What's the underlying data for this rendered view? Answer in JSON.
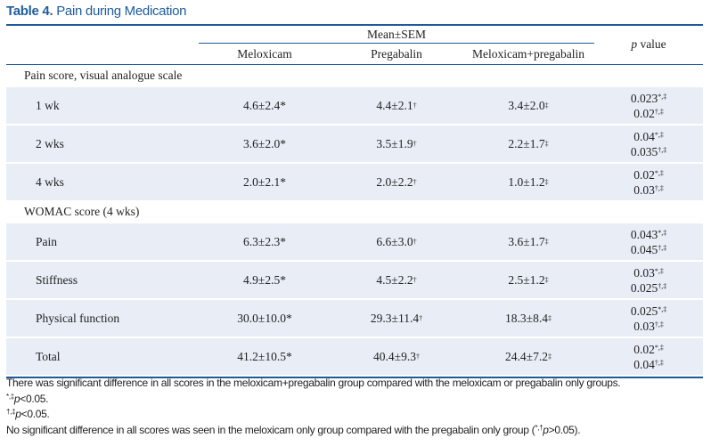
{
  "title": {
    "number": "Table 4.",
    "text": "Pain during Medication"
  },
  "header": {
    "group": "Mean±SEM",
    "columns": [
      "Meloxicam",
      "Pregabalin",
      "Meloxicam+pregabalin"
    ],
    "pvalue_italic": "p",
    "pvalue_rest": " value"
  },
  "sections": [
    {
      "label": "Pain score, visual analogue scale",
      "rows": [
        {
          "label": "1 wk",
          "values": [
            "4.6±2.4*",
            "4.4±2.1",
            "3.4±2.0"
          ],
          "sups": [
            "",
            "†",
            "‡"
          ],
          "p": [
            {
              "v": "0.023",
              "s": "*,‡"
            },
            {
              "v": "0.02",
              "s": "†,‡"
            }
          ]
        },
        {
          "label": "2 wks",
          "values": [
            "3.6±2.0*",
            "3.5±1.9",
            "2.2±1.7"
          ],
          "sups": [
            "",
            "†",
            "‡"
          ],
          "p": [
            {
              "v": "0.04",
              "s": "*,‡"
            },
            {
              "v": "0.035",
              "s": "†,‡"
            }
          ]
        },
        {
          "label": "4 wks",
          "values": [
            "2.0±2.1*",
            "2.0±2.2",
            "1.0±1.2"
          ],
          "sups": [
            "",
            "†",
            "‡"
          ],
          "p": [
            {
              "v": "0.02",
              "s": "*,‡"
            },
            {
              "v": "0.03",
              "s": "†,‡"
            }
          ]
        }
      ]
    },
    {
      "label": "WOMAC score (4 wks)",
      "rows": [
        {
          "label": "Pain",
          "values": [
            "6.3±2.3*",
            "6.6±3.0",
            "3.6±1.7"
          ],
          "sups": [
            "",
            "†",
            "‡"
          ],
          "p": [
            {
              "v": "0.043",
              "s": "*,‡"
            },
            {
              "v": "0.045",
              "s": "†,‡"
            }
          ]
        },
        {
          "label": "Stiffness",
          "values": [
            "4.9±2.5*",
            "4.5±2.2",
            "2.5±1.2"
          ],
          "sups": [
            "",
            "†",
            "‡"
          ],
          "p": [
            {
              "v": "0.03",
              "s": "*,‡"
            },
            {
              "v": "0.025",
              "s": "†,‡"
            }
          ]
        },
        {
          "label": "Physical function",
          "values": [
            "30.0±10.0*",
            "29.3±11.4",
            "18.3±8.4"
          ],
          "sups": [
            "",
            "†",
            "‡"
          ],
          "p": [
            {
              "v": "0.025",
              "s": "*,‡"
            },
            {
              "v": "0.03",
              "s": "†,‡"
            }
          ]
        },
        {
          "label": "Total",
          "values": [
            "41.2±10.5*",
            "40.4±9.3",
            "24.4±7.2"
          ],
          "sups": [
            "",
            "†",
            "‡"
          ],
          "p": [
            {
              "v": "0.02",
              "s": "*,‡"
            },
            {
              "v": "0.04",
              "s": "†,‡"
            }
          ]
        }
      ]
    }
  ],
  "notes": {
    "line1": "There was significant difference in all scores in the meloxicam+pregabalin group compared with the meloxicam or pregabalin only groups.",
    "line2": {
      "sup": "*,‡",
      "p": "p",
      "rest": "<0.05."
    },
    "line3": {
      "sup": "†,‡",
      "p": "p",
      "rest": "<0.05."
    },
    "line4": {
      "pre": "No significant difference in all scores was seen in the meloxicam only group compared with the pregabalin only group (",
      "sup": "*,†",
      "p": "p",
      "rest": ">0.05)."
    }
  },
  "colors": {
    "accent": "#1e5c9c",
    "shade": "#e8edf6"
  }
}
